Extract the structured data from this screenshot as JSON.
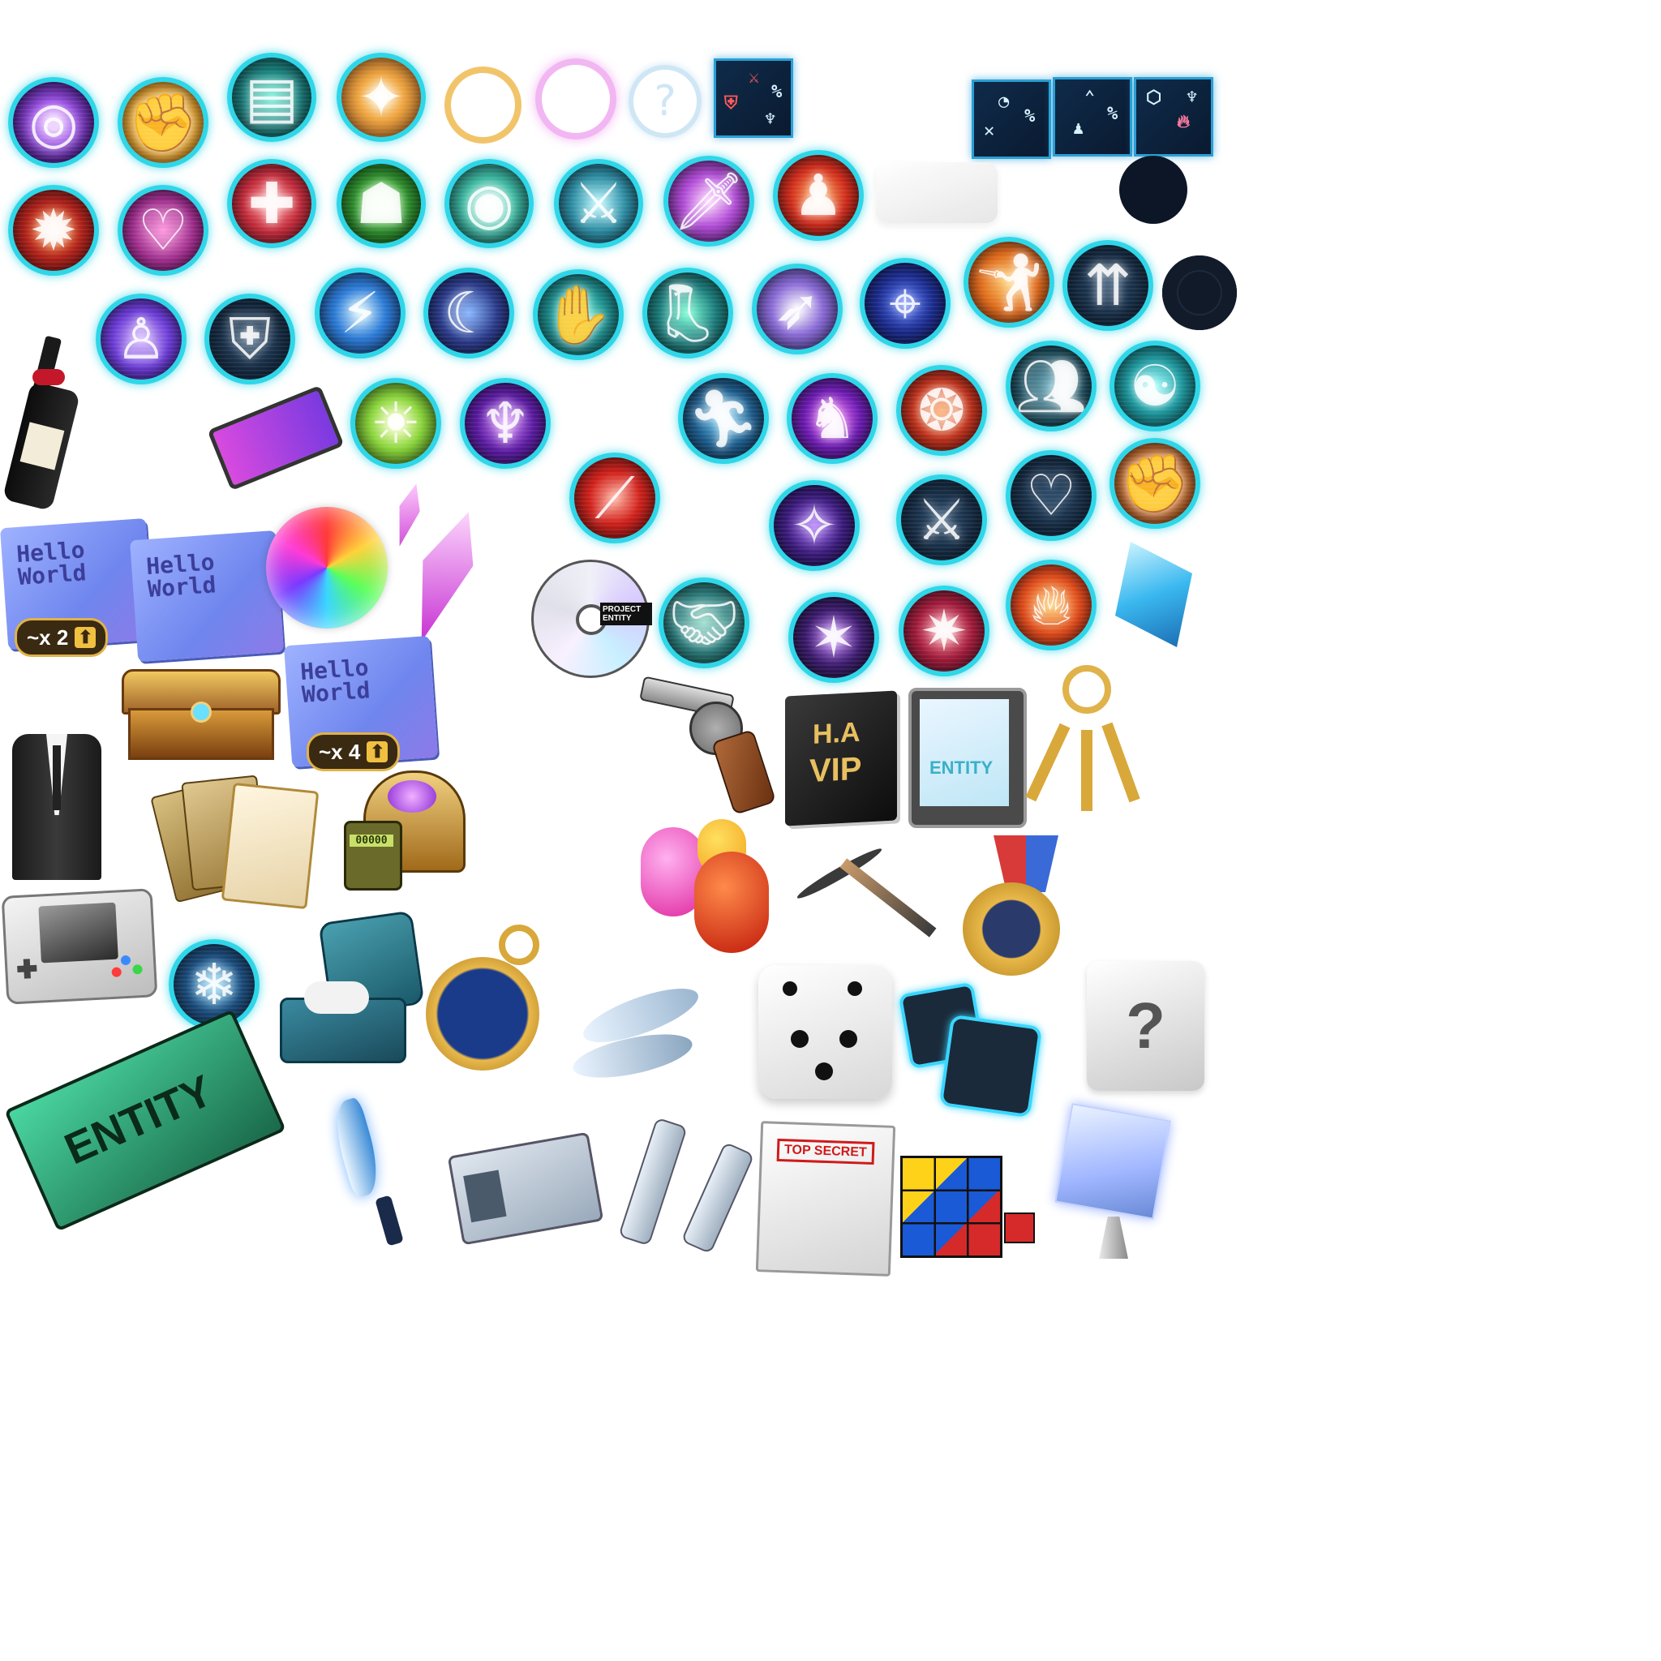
{
  "sheet": {
    "background": "#ffffff",
    "accent": "#2fd6e8"
  },
  "rings": {
    "gold": "#f2c46a",
    "pink": "#f2b6f2",
    "question_mark": "?"
  },
  "tickets": {
    "text": "Hello\nWorld",
    "badge_x2": "~x 2",
    "badge_x4": "~x 4",
    "arrow": "⬆"
  },
  "cd": {
    "label": "PROJECT\nENTITY"
  },
  "vip_book": {
    "line1": "H.A",
    "line2": "VIP"
  },
  "phone": {
    "label": "ENTITY"
  },
  "handheld_counter": {
    "value": "00000"
  },
  "banner": {
    "label": "ENTITY"
  },
  "folder": {
    "stamp": "TOP SECRET"
  },
  "puzzle": {
    "symbol": "?"
  }
}
